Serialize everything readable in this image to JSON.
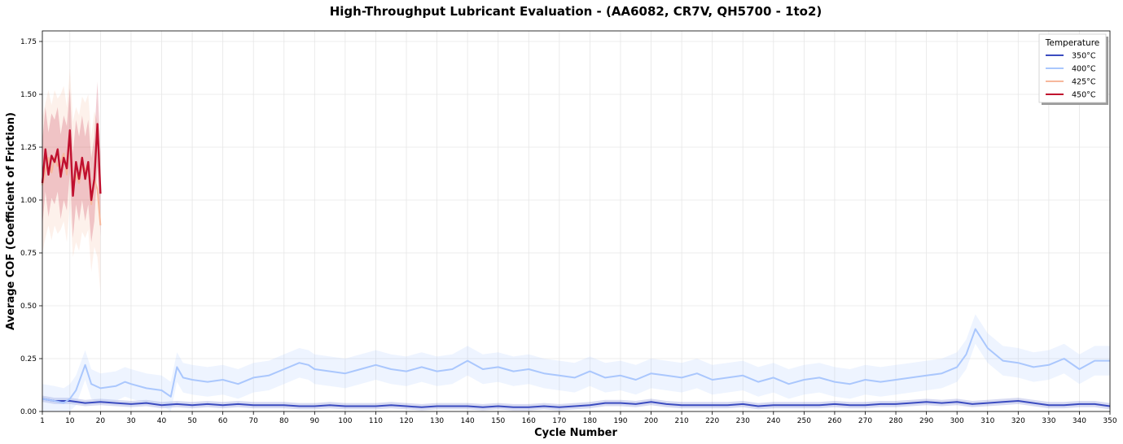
{
  "chart_data": {
    "type": "line",
    "title": "High-Throughput Lubricant Evaluation -  (AA6082, CR7V, QH5700 - 1to2)",
    "xlabel": "Cycle Number",
    "ylabel": "Average COF (Coefficient of Friction)",
    "xlim": [
      1,
      350
    ],
    "ylim": [
      0,
      1.8
    ],
    "xticks": [
      1,
      10,
      20,
      30,
      40,
      50,
      60,
      70,
      80,
      90,
      100,
      110,
      120,
      130,
      140,
      150,
      160,
      170,
      180,
      190,
      200,
      210,
      220,
      230,
      240,
      250,
      260,
      270,
      280,
      290,
      300,
      310,
      320,
      330,
      340,
      350
    ],
    "yticks": [
      0.0,
      0.25,
      0.5,
      0.75,
      1.0,
      1.25,
      1.5,
      1.75
    ],
    "ytick_labels": [
      "0.00",
      "0.25",
      "0.50",
      "0.75",
      "1.00",
      "1.25",
      "1.50",
      "1.75"
    ],
    "grid": true,
    "legend": {
      "title": "Temperature",
      "position": "top-right"
    },
    "series": [
      {
        "name": "350°C",
        "color": "#3b4cc0",
        "band": true,
        "x": [
          1,
          5,
          10,
          15,
          20,
          25,
          30,
          35,
          40,
          45,
          50,
          55,
          60,
          65,
          70,
          75,
          80,
          85,
          90,
          95,
          100,
          105,
          110,
          115,
          120,
          125,
          130,
          135,
          140,
          145,
          150,
          155,
          160,
          165,
          170,
          175,
          180,
          185,
          190,
          195,
          200,
          205,
          210,
          215,
          220,
          225,
          230,
          235,
          240,
          245,
          250,
          255,
          260,
          265,
          270,
          275,
          280,
          285,
          290,
          295,
          300,
          305,
          310,
          315,
          320,
          325,
          330,
          335,
          340,
          345,
          350
        ],
        "y": [
          0.06,
          0.05,
          0.05,
          0.04,
          0.045,
          0.04,
          0.035,
          0.04,
          0.03,
          0.035,
          0.03,
          0.035,
          0.03,
          0.035,
          0.03,
          0.03,
          0.03,
          0.025,
          0.025,
          0.03,
          0.025,
          0.025,
          0.025,
          0.03,
          0.025,
          0.02,
          0.025,
          0.025,
          0.025,
          0.02,
          0.025,
          0.02,
          0.02,
          0.025,
          0.02,
          0.025,
          0.03,
          0.04,
          0.04,
          0.035,
          0.045,
          0.035,
          0.03,
          0.03,
          0.03,
          0.03,
          0.035,
          0.025,
          0.03,
          0.03,
          0.03,
          0.03,
          0.035,
          0.03,
          0.03,
          0.035,
          0.035,
          0.04,
          0.045,
          0.04,
          0.045,
          0.035,
          0.04,
          0.045,
          0.05,
          0.04,
          0.03,
          0.03,
          0.035,
          0.035,
          0.025
        ],
        "band_width": 0.015
      },
      {
        "name": "400°C",
        "color": "#aac7fd",
        "band": true,
        "x": [
          1,
          5,
          8,
          10,
          12,
          15,
          17,
          20,
          25,
          28,
          30,
          35,
          40,
          43,
          45,
          47,
          50,
          55,
          60,
          65,
          70,
          75,
          80,
          85,
          88,
          90,
          95,
          100,
          105,
          110,
          115,
          120,
          125,
          130,
          135,
          140,
          145,
          150,
          155,
          160,
          165,
          170,
          175,
          180,
          185,
          190,
          195,
          200,
          205,
          210,
          215,
          220,
          225,
          230,
          235,
          240,
          245,
          250,
          255,
          260,
          265,
          270,
          275,
          280,
          285,
          290,
          295,
          300,
          303,
          306,
          310,
          315,
          320,
          325,
          330,
          335,
          340,
          345,
          350
        ],
        "y": [
          0.06,
          0.05,
          0.04,
          0.06,
          0.1,
          0.22,
          0.13,
          0.11,
          0.12,
          0.14,
          0.13,
          0.11,
          0.1,
          0.07,
          0.21,
          0.16,
          0.15,
          0.14,
          0.15,
          0.13,
          0.16,
          0.17,
          0.2,
          0.23,
          0.22,
          0.2,
          0.19,
          0.18,
          0.2,
          0.22,
          0.2,
          0.19,
          0.21,
          0.19,
          0.2,
          0.24,
          0.2,
          0.21,
          0.19,
          0.2,
          0.18,
          0.17,
          0.16,
          0.19,
          0.16,
          0.17,
          0.15,
          0.18,
          0.17,
          0.16,
          0.18,
          0.15,
          0.16,
          0.17,
          0.14,
          0.16,
          0.13,
          0.15,
          0.16,
          0.14,
          0.13,
          0.15,
          0.14,
          0.15,
          0.16,
          0.17,
          0.18,
          0.21,
          0.27,
          0.39,
          0.3,
          0.24,
          0.23,
          0.21,
          0.22,
          0.25,
          0.2,
          0.24,
          0.24
        ],
        "band_width": 0.07
      },
      {
        "name": "425°C",
        "color": "#f7b89c",
        "band": true,
        "x": [
          1,
          2,
          3,
          4,
          5,
          6,
          7,
          8,
          9,
          10,
          11,
          12,
          13,
          14,
          15,
          16,
          17,
          18,
          19,
          20
        ],
        "y": [
          1.07,
          1.14,
          1.2,
          1.13,
          1.2,
          1.16,
          1.18,
          1.22,
          1.12,
          1.3,
          1.05,
          1.12,
          1.08,
          1.17,
          1.14,
          1.18,
          0.98,
          1.1,
          1.05,
          0.88
        ],
        "band_width": 0.32
      },
      {
        "name": "450°C",
        "color": "#c0102e",
        "band": true,
        "x": [
          1,
          2,
          3,
          4,
          5,
          6,
          7,
          8,
          9,
          10,
          11,
          12,
          13,
          14,
          15,
          16,
          17,
          18,
          19,
          20
        ],
        "y": [
          1.08,
          1.24,
          1.12,
          1.21,
          1.18,
          1.24,
          1.11,
          1.2,
          1.15,
          1.33,
          1.02,
          1.18,
          1.1,
          1.2,
          1.1,
          1.18,
          1.0,
          1.1,
          1.36,
          1.03
        ],
        "band_width": 0.2
      }
    ]
  }
}
